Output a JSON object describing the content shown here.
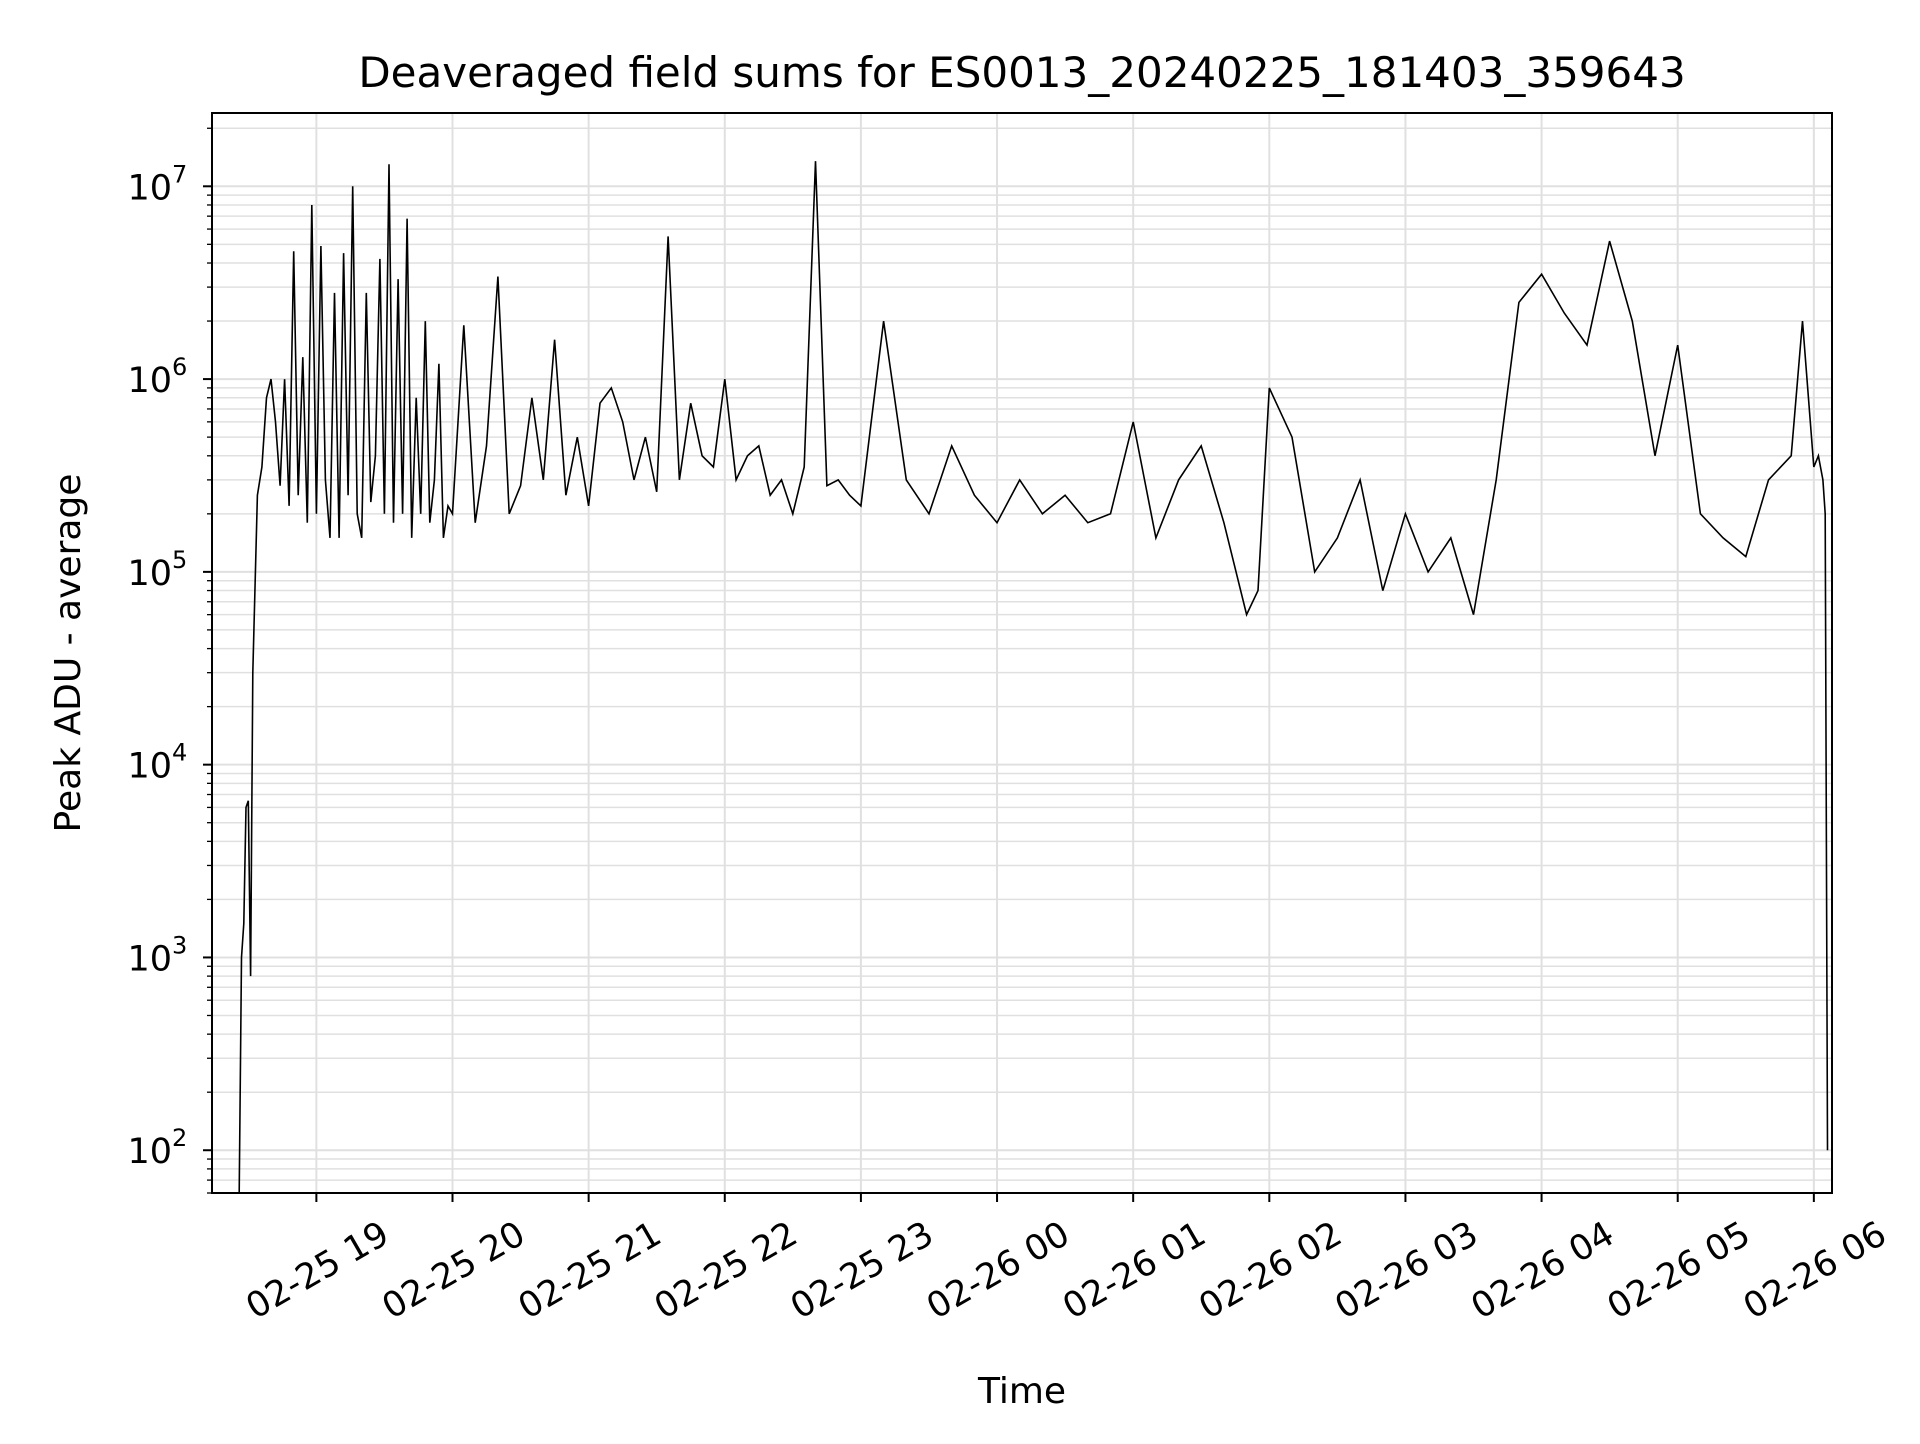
{
  "chart_data": {
    "type": "line",
    "title": "Deaveraged field sums for ES0013_20240225_181403_359643",
    "xlabel": "Time",
    "ylabel": "Peak ADU - average",
    "x_scale": "time",
    "y_scale": "log",
    "xlim": [
      "2024-02-25 18:14",
      "2024-02-26 06:08"
    ],
    "ylim": [
      60,
      24000000
    ],
    "grid": true,
    "minor_grid": true,
    "line_color": "#000000",
    "grid_color": "#e0e0e0",
    "x_ticks": [
      {
        "value": "2024-02-25 19:00",
        "label": "02-25 19"
      },
      {
        "value": "2024-02-25 20:00",
        "label": "02-25 20"
      },
      {
        "value": "2024-02-25 21:00",
        "label": "02-25 21"
      },
      {
        "value": "2024-02-25 22:00",
        "label": "02-25 22"
      },
      {
        "value": "2024-02-25 23:00",
        "label": "02-25 23"
      },
      {
        "value": "2024-02-26 00:00",
        "label": "02-26 00"
      },
      {
        "value": "2024-02-26 01:00",
        "label": "02-26 01"
      },
      {
        "value": "2024-02-26 02:00",
        "label": "02-26 02"
      },
      {
        "value": "2024-02-26 03:00",
        "label": "02-26 03"
      },
      {
        "value": "2024-02-26 04:00",
        "label": "02-26 04"
      },
      {
        "value": "2024-02-26 05:00",
        "label": "02-26 05"
      },
      {
        "value": "2024-02-26 06:00",
        "label": "02-26 06"
      }
    ],
    "y_ticks": [
      {
        "value": 100,
        "base": "10",
        "exp": "2"
      },
      {
        "value": 1000,
        "base": "10",
        "exp": "3"
      },
      {
        "value": 10000,
        "base": "10",
        "exp": "4"
      },
      {
        "value": 100000,
        "base": "10",
        "exp": "5"
      },
      {
        "value": 1000000,
        "base": "10",
        "exp": "6"
      },
      {
        "value": 10000000,
        "base": "10",
        "exp": "7"
      }
    ],
    "series": [
      {
        "x": [
          "2024-02-25 18:26",
          "2024-02-25 18:27",
          "2024-02-25 18:28",
          "2024-02-25 18:29",
          "2024-02-25 18:30",
          "2024-02-25 18:31",
          "2024-02-25 18:32",
          "2024-02-25 18:34",
          "2024-02-25 18:36",
          "2024-02-25 18:38",
          "2024-02-25 18:40",
          "2024-02-25 18:42",
          "2024-02-25 18:44",
          "2024-02-25 18:46",
          "2024-02-25 18:48",
          "2024-02-25 18:50",
          "2024-02-25 18:52",
          "2024-02-25 18:54",
          "2024-02-25 18:56",
          "2024-02-25 18:58",
          "2024-02-25 19:00",
          "2024-02-25 19:02",
          "2024-02-25 19:04",
          "2024-02-25 19:06",
          "2024-02-25 19:08",
          "2024-02-25 19:10",
          "2024-02-25 19:12",
          "2024-02-25 19:14",
          "2024-02-25 19:16",
          "2024-02-25 19:18",
          "2024-02-25 19:20",
          "2024-02-25 19:22",
          "2024-02-25 19:24",
          "2024-02-25 19:26",
          "2024-02-25 19:28",
          "2024-02-25 19:30",
          "2024-02-25 19:32",
          "2024-02-25 19:34",
          "2024-02-25 19:36",
          "2024-02-25 19:38",
          "2024-02-25 19:40",
          "2024-02-25 19:42",
          "2024-02-25 19:44",
          "2024-02-25 19:46",
          "2024-02-25 19:48",
          "2024-02-25 19:50",
          "2024-02-25 19:52",
          "2024-02-25 19:54",
          "2024-02-25 19:56",
          "2024-02-25 19:58",
          "2024-02-25 20:00",
          "2024-02-25 20:05",
          "2024-02-25 20:10",
          "2024-02-25 20:15",
          "2024-02-25 20:20",
          "2024-02-25 20:25",
          "2024-02-25 20:30",
          "2024-02-25 20:35",
          "2024-02-25 20:40",
          "2024-02-25 20:45",
          "2024-02-25 20:50",
          "2024-02-25 20:55",
          "2024-02-25 21:00",
          "2024-02-25 21:05",
          "2024-02-25 21:10",
          "2024-02-25 21:15",
          "2024-02-25 21:20",
          "2024-02-25 21:25",
          "2024-02-25 21:30",
          "2024-02-25 21:35",
          "2024-02-25 21:40",
          "2024-02-25 21:45",
          "2024-02-25 21:50",
          "2024-02-25 21:55",
          "2024-02-25 22:00",
          "2024-02-25 22:05",
          "2024-02-25 22:10",
          "2024-02-25 22:15",
          "2024-02-25 22:20",
          "2024-02-25 22:25",
          "2024-02-25 22:30",
          "2024-02-25 22:35",
          "2024-02-25 22:40",
          "2024-02-25 22:45",
          "2024-02-25 22:50",
          "2024-02-25 22:55",
          "2024-02-25 23:00",
          "2024-02-25 23:10",
          "2024-02-25 23:20",
          "2024-02-25 23:30",
          "2024-02-25 23:40",
          "2024-02-25 23:50",
          "2024-02-26 00:00",
          "2024-02-26 00:10",
          "2024-02-26 00:20",
          "2024-02-26 00:30",
          "2024-02-26 00:40",
          "2024-02-26 00:50",
          "2024-02-26 01:00",
          "2024-02-26 01:10",
          "2024-02-26 01:20",
          "2024-02-26 01:30",
          "2024-02-26 01:40",
          "2024-02-26 01:50",
          "2024-02-26 01:55",
          "2024-02-26 02:00",
          "2024-02-26 02:10",
          "2024-02-26 02:20",
          "2024-02-26 02:30",
          "2024-02-26 02:40",
          "2024-02-26 02:50",
          "2024-02-26 03:00",
          "2024-02-26 03:10",
          "2024-02-26 03:20",
          "2024-02-26 03:30",
          "2024-02-26 03:40",
          "2024-02-26 03:50",
          "2024-02-26 04:00",
          "2024-02-26 04:10",
          "2024-02-26 04:20",
          "2024-02-26 04:30",
          "2024-02-26 04:40",
          "2024-02-26 04:50",
          "2024-02-26 05:00",
          "2024-02-26 05:10",
          "2024-02-26 05:20",
          "2024-02-26 05:30",
          "2024-02-26 05:40",
          "2024-02-26 05:50",
          "2024-02-26 05:55",
          "2024-02-26 06:00",
          "2024-02-26 06:02",
          "2024-02-26 06:04",
          "2024-02-26 06:05",
          "2024-02-26 06:06"
        ],
        "values": [
          60,
          1000,
          1500,
          6000,
          6500,
          800,
          30000,
          250000,
          350000,
          800000,
          1000000,
          600000,
          280000,
          1000000,
          220000,
          4600000,
          250000,
          1300000,
          180000,
          8000000,
          200000,
          4900000,
          300000,
          150000,
          2800000,
          150000,
          4500000,
          250000,
          10000000,
          200000,
          150000,
          2800000,
          230000,
          400000,
          4200000,
          200000,
          13000000,
          180000,
          3300000,
          200000,
          6800000,
          150000,
          800000,
          200000,
          2000000,
          180000,
          300000,
          1200000,
          150000,
          220000,
          200000,
          1900000,
          180000,
          450000,
          3400000,
          200000,
          280000,
          800000,
          300000,
          1600000,
          250000,
          500000,
          220000,
          750000,
          900000,
          600000,
          300000,
          500000,
          260000,
          5500000,
          300000,
          750000,
          400000,
          350000,
          1000000,
          300000,
          400000,
          450000,
          250000,
          300000,
          200000,
          350000,
          13500000,
          280000,
          300000,
          250000,
          220000,
          2000000,
          300000,
          200000,
          450000,
          250000,
          180000,
          300000,
          200000,
          250000,
          180000,
          200000,
          600000,
          150000,
          300000,
          450000,
          180000,
          60000,
          80000,
          900000,
          500000,
          100000,
          150000,
          300000,
          80000,
          200000,
          100000,
          150000,
          60000,
          300000,
          2500000,
          3500000,
          2200000,
          1500000,
          5200000,
          2000000,
          400000,
          1500000,
          200000,
          150000,
          120000,
          300000,
          400000,
          2000000,
          350000,
          400000,
          300000,
          200000,
          100
        ]
      }
    ]
  }
}
